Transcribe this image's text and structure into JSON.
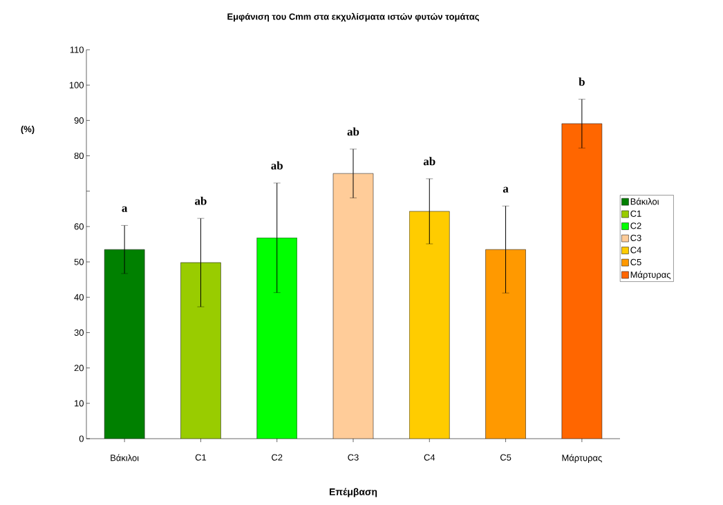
{
  "chart_data": {
    "type": "bar",
    "title": "Εμφάνιση του  Cmm στα  εκχυλίσματα ιστών φυτών τομάτας",
    "xlabel": "Επέμβαση",
    "ylabel": "(%)",
    "categories": [
      "Βάκιλοι",
      "C1",
      "C2",
      "C3",
      "C4",
      "C5",
      "Μάρτυρας"
    ],
    "series": [
      {
        "name": "Βάκιλοι",
        "color": "#008000",
        "values": [
          53.5,
          null,
          null,
          null,
          null,
          null,
          null
        ],
        "errors": [
          6.8,
          null,
          null,
          null,
          null,
          null,
          null
        ]
      },
      {
        "name": "C1",
        "color": "#99cc00",
        "values": [
          null,
          49.8,
          null,
          null,
          null,
          null,
          null
        ],
        "errors": [
          null,
          12.5,
          null,
          null,
          null,
          null,
          null
        ]
      },
      {
        "name": "C2",
        "color": "#00ff00",
        "values": [
          null,
          null,
          56.8,
          null,
          null,
          null,
          null
        ],
        "errors": [
          null,
          null,
          15.5,
          null,
          null,
          null,
          null
        ]
      },
      {
        "name": "C3",
        "color": "#ffcc99",
        "values": [
          null,
          null,
          null,
          75,
          null,
          null,
          null
        ],
        "errors": [
          null,
          null,
          null,
          6.9,
          null,
          null,
          null
        ]
      },
      {
        "name": "C4",
        "color": "#ffcc00",
        "values": [
          null,
          null,
          null,
          null,
          64.3,
          null,
          null
        ],
        "errors": [
          null,
          null,
          null,
          null,
          9.2,
          null,
          null
        ]
      },
      {
        "name": "C5",
        "color": "#ff9900",
        "values": [
          null,
          null,
          null,
          null,
          null,
          53.5,
          null
        ],
        "errors": [
          null,
          null,
          null,
          null,
          null,
          12.3,
          null
        ]
      },
      {
        "name": "Μάρτυρας",
        "color": "#ff6600",
        "values": [
          null,
          null,
          null,
          null,
          null,
          null,
          89.1
        ],
        "errors": [
          null,
          null,
          null,
          null,
          null,
          null,
          6.9
        ]
      }
    ],
    "ylim": [
      0,
      110
    ],
    "yticks": [
      0,
      10,
      20,
      30,
      40,
      50,
      60,
      {
        "value": 70,
        "label": null
      },
      80,
      90,
      100,
      110
    ],
    "legend": "right",
    "grid": false,
    "annotations": [
      "a",
      "ab",
      "ab",
      "ab",
      "ab",
      "a",
      "b"
    ]
  }
}
